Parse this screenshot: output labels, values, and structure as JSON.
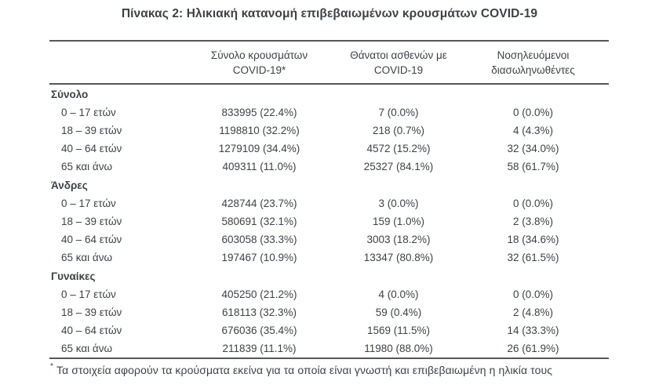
{
  "title": "Πίνακας 2: Ηλικιακή κατανομή επιβεβαιωμένων κρουσμάτων COVID-19",
  "colors": {
    "text": "#3d4248",
    "rule": "#54565a"
  },
  "table": {
    "columns": [
      {
        "line1": "",
        "line2": ""
      },
      {
        "line1": "Σύνολο κρουσμάτων",
        "line2": "COVID-19*"
      },
      {
        "line1": "Θάνατοι ασθενών με",
        "line2": "COVID-19"
      },
      {
        "line1": "Νοσηλευόμενοι",
        "line2": "διασωληνωθέντες"
      }
    ],
    "sections": [
      {
        "label": "Σύνολο",
        "rows": [
          {
            "label": "0 – 17 ετών",
            "cases": "833995 (22.4%)",
            "deaths": "7 (0.0%)",
            "intubated": "0 (0.0%)"
          },
          {
            "label": "18 – 39 ετών",
            "cases": "1198810 (32.2%)",
            "deaths": "218 (0.7%)",
            "intubated": "4 (4.3%)"
          },
          {
            "label": "40 – 64 ετών",
            "cases": "1279109 (34.4%)",
            "deaths": "4572 (15.2%)",
            "intubated": "32 (34.0%)"
          },
          {
            "label": "65 και άνω",
            "cases": "409311 (11.0%)",
            "deaths": "25327 (84.1%)",
            "intubated": "58 (61.7%)"
          }
        ]
      },
      {
        "label": "Άνδρες",
        "rows": [
          {
            "label": "0 – 17 ετών",
            "cases": "428744 (23.7%)",
            "deaths": "3 (0.0%)",
            "intubated": "0 (0.0%)"
          },
          {
            "label": "18 – 39 ετών",
            "cases": "580691 (32.1%)",
            "deaths": "159 (1.0%)",
            "intubated": "2 (3.8%)"
          },
          {
            "label": "40 – 64 ετών",
            "cases": "603058 (33.3%)",
            "deaths": "3003 (18.2%)",
            "intubated": "18 (34.6%)"
          },
          {
            "label": "65 και άνω",
            "cases": "197467 (10.9%)",
            "deaths": "13347 (80.8%)",
            "intubated": "32 (61.5%)"
          }
        ]
      },
      {
        "label": "Γυναίκες",
        "rows": [
          {
            "label": "0 – 17 ετών",
            "cases": "405250 (21.2%)",
            "deaths": "4 (0.0%)",
            "intubated": "0 (0.0%)"
          },
          {
            "label": "18 – 39 ετών",
            "cases": "618113 (32.3%)",
            "deaths": "59 (0.4%)",
            "intubated": "2 (4.8%)"
          },
          {
            "label": "40 – 64 ετών",
            "cases": "676036 (35.4%)",
            "deaths": "1569 (11.5%)",
            "intubated": "14 (33.3%)"
          },
          {
            "label": "65 και άνω",
            "cases": "211839 (11.1%)",
            "deaths": "11980 (88.0%)",
            "intubated": "26 (61.9%)"
          }
        ]
      }
    ]
  },
  "footnote": {
    "marker": "*",
    "text": "Τα στοιχεία αφορούν τα κρούσματα εκείνα για τα οποία είναι γνωστή και επιβεβαιωμένη η ηλικία τους"
  }
}
